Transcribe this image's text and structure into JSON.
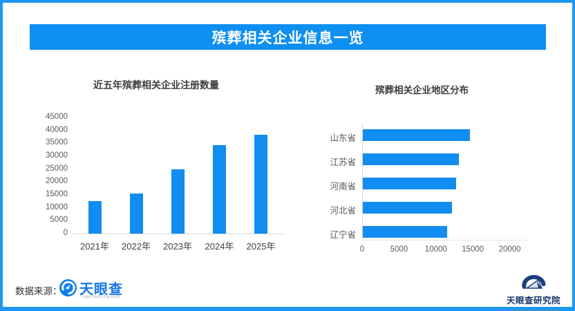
{
  "banner": {
    "title": "殡葬相关企业信息一览"
  },
  "footer": {
    "source_label": "数据来源：",
    "tyc_logo_text": "天眼查",
    "tyc_logo_sub": "TianYanCha.com",
    "institute_logo_text": "天眼查研究院"
  },
  "colors": {
    "accent_blue": "#118cf0",
    "banner_blue": "#0e8ff2",
    "frame_blue": "#1e97f3",
    "axis_gray": "#d9d9d9",
    "label_gray": "#595959"
  },
  "chart_data": [
    {
      "type": "bar",
      "title": "近五年殡葬相关企业注册数量",
      "categories": [
        "2021年",
        "2022年",
        "2023年",
        "2024年",
        "2025年"
      ],
      "values": [
        12500,
        15500,
        25000,
        34200,
        38300
      ],
      "xlabel": "",
      "ylabel": "",
      "ylim": [
        0,
        45000
      ],
      "yticks": [
        0,
        5000,
        10000,
        15000,
        20000,
        25000,
        30000,
        35000,
        40000,
        45000
      ],
      "grid": false,
      "legend": "none",
      "bar_color": "#118cf0"
    },
    {
      "type": "bar",
      "orientation": "horizontal",
      "title": "殡葬相关企业地区分布",
      "categories": [
        "山东省",
        "江苏省",
        "河南省",
        "河北省",
        "辽宁省"
      ],
      "values": [
        14500,
        13000,
        12600,
        12100,
        11400
      ],
      "xlabel": "",
      "ylabel": "",
      "xlim": [
        0,
        22000
      ],
      "xticks": [
        0,
        5000,
        10000,
        15000,
        20000
      ],
      "grid": false,
      "legend": "none",
      "bar_color": "#118cf0"
    }
  ]
}
